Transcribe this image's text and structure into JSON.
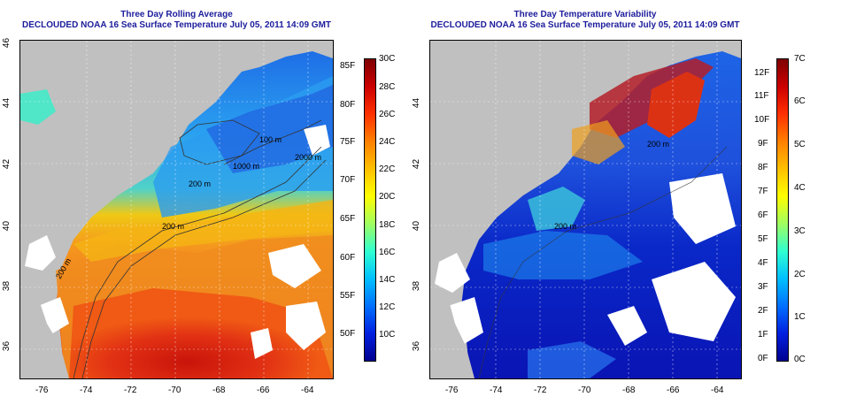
{
  "left_panel": {
    "title": "Three Day Rolling Average",
    "subtitle": "DECLOUDED NOAA 16 Sea Surface Temperature July 05, 2011 14:09 GMT",
    "x_ticks": [
      "-76",
      "-74",
      "-72",
      "-70",
      "-68",
      "-66",
      "-64"
    ],
    "y_ticks": [
      "36",
      "38",
      "40",
      "42",
      "44",
      "46"
    ],
    "contour_labels": [
      "200 m",
      "200 m",
      "1000 m",
      "2000 m",
      "100 m",
      "200 m",
      "200 m"
    ],
    "colorbar_fahrenheit": [
      "85F",
      "80F",
      "75F",
      "70F",
      "65F",
      "60F",
      "55F",
      "50F"
    ],
    "colorbar_celsius": [
      "30C",
      "28C",
      "26C",
      "24C",
      "22C",
      "20C",
      "18C",
      "16C",
      "14C",
      "12C",
      "10C"
    ]
  },
  "right_panel": {
    "title": "Three Day Temperature Variability",
    "subtitle": "DECLOUDED NOAA 16 Sea Surface Temperature July 05, 2011 14:09 GMT",
    "x_ticks": [
      "-76",
      "-74",
      "-72",
      "-70",
      "-68",
      "-66",
      "-64"
    ],
    "y_ticks": [
      "36",
      "38",
      "40",
      "42",
      "44"
    ],
    "contour_labels": [
      "200 m",
      "200 m"
    ],
    "colorbar_fahrenheit": [
      "12F",
      "11F",
      "10F",
      "9F",
      "8F",
      "7F",
      "6F",
      "5F",
      "4F",
      "3F",
      "2F",
      "1F",
      "0F"
    ],
    "colorbar_celsius": [
      "7C",
      "6C",
      "5C",
      "4C",
      "3C",
      "2C",
      "1C",
      "0C"
    ]
  },
  "colors": {
    "land": "#c0c0c0",
    "title": "#1c1c9c",
    "sst_scale": [
      "#00007f",
      "#0000ff",
      "#0080ff",
      "#00ffff",
      "#80ff80",
      "#ffff00",
      "#ff8000",
      "#ff0000",
      "#7f0000"
    ]
  }
}
